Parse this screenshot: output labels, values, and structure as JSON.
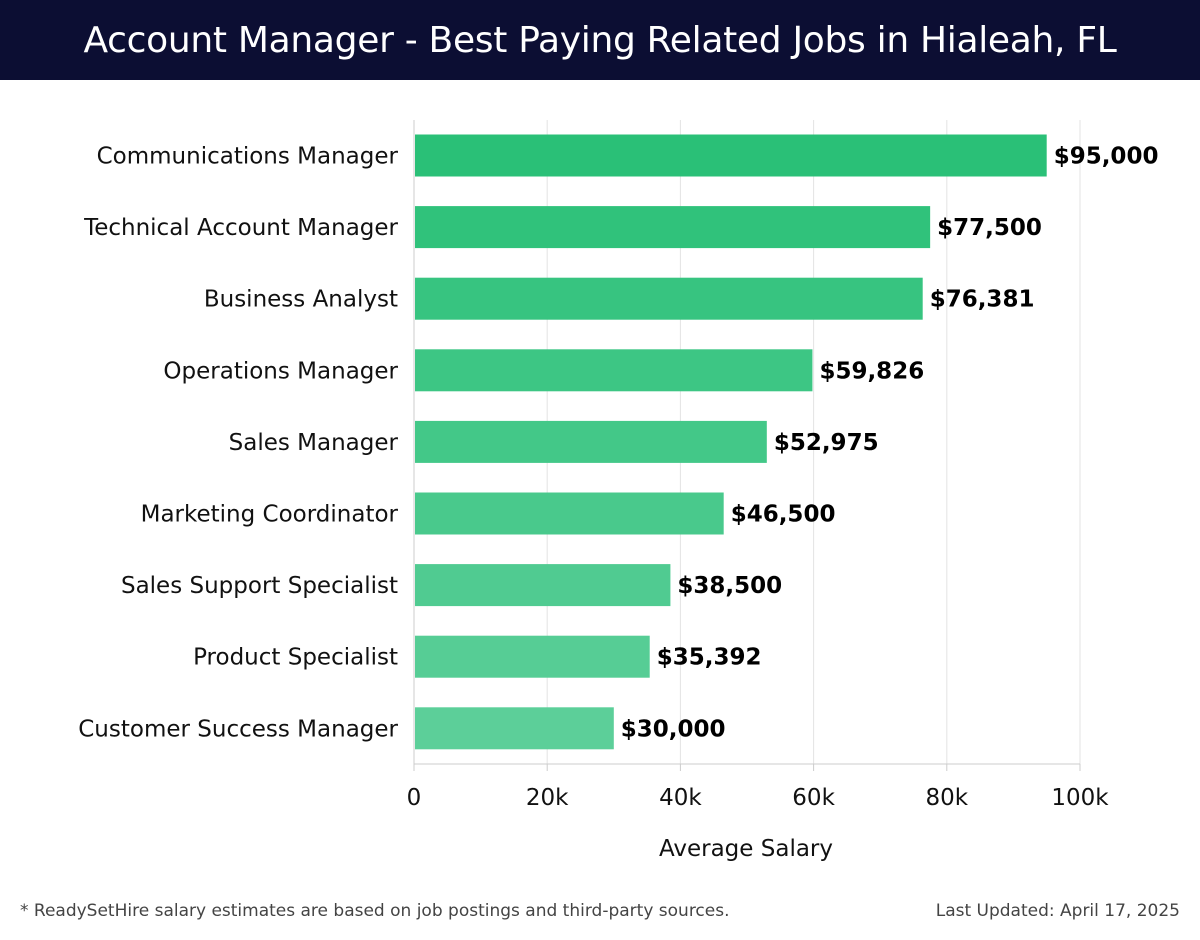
{
  "header": {
    "title": "Account Manager - Best Paying Related Jobs in Hialeah, FL"
  },
  "footer": {
    "note": "* ReadySetHire salary estimates are based on job postings and third-party sources.",
    "updated": "Last Updated: April 17, 2025"
  },
  "colors": {
    "header_bg": "#0c0e33",
    "bar_top": "#2ac077",
    "bar_bottom": "#5ccf99"
  },
  "chart_data": {
    "type": "bar",
    "orientation": "horizontal",
    "title": "Account Manager - Best Paying Related Jobs in Hialeah, FL",
    "xlabel": "Average Salary",
    "ylabel": "",
    "xlim": [
      0,
      100000
    ],
    "ticks": [
      0,
      20000,
      40000,
      60000,
      80000,
      100000
    ],
    "tick_labels": [
      "0",
      "20k",
      "40k",
      "60k",
      "80k",
      "100k"
    ],
    "grid": true,
    "categories": [
      "Communications Manager",
      "Technical Account Manager",
      "Business Analyst",
      "Operations Manager",
      "Sales Manager",
      "Marketing Coordinator",
      "Sales Support Specialist",
      "Product Specialist",
      "Customer Success Manager"
    ],
    "values": [
      95000,
      77500,
      76381,
      59826,
      52975,
      46500,
      38500,
      35392,
      30000
    ],
    "data_labels": [
      "$95,000",
      "$77,500",
      "$76,381",
      "$59,826",
      "$52,975",
      "$46,500",
      "$38,500",
      "$35,392",
      "$30,000"
    ]
  }
}
